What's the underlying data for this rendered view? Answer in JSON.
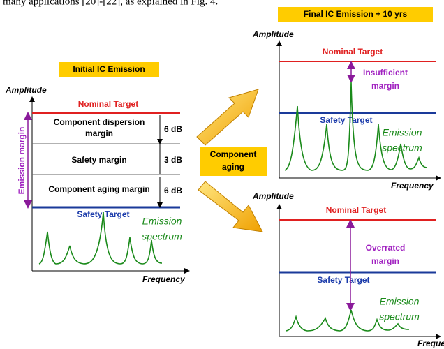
{
  "caption_fragment": "many applications [20]-[22], as explained in Fig. 4.",
  "initial": {
    "title": "Initial IC Emission",
    "y_axis": "Amplitude",
    "x_axis": "Frequency",
    "nominal": "Nominal Target",
    "safety": "Safety Target",
    "emission_margin": "Emission margin",
    "bands": [
      {
        "label": [
          "Component dispersion",
          "margin"
        ],
        "db": "6 dB"
      },
      {
        "label": [
          "Safety margin"
        ],
        "db": "3 dB"
      },
      {
        "label": [
          "Component aging margin"
        ],
        "db": "6 dB"
      }
    ],
    "spectrum": [
      "Emission",
      "spectrum"
    ]
  },
  "aging": [
    "Component",
    "aging"
  ],
  "final": {
    "title": "Final IC Emission + 10 yrs",
    "top": {
      "y_axis": "Amplitude",
      "x_axis": "Frequency",
      "nominal": "Nominal Target",
      "safety": "Safety Target",
      "note": [
        "Insufficient",
        "margin"
      ],
      "spectrum": [
        "Emission",
        "spectrum"
      ]
    },
    "bottom": {
      "y_axis": "Amplitude",
      "x_axis": "Frequency",
      "nominal": "Nominal Target",
      "safety": "Safety Target",
      "note": [
        "Overrated",
        "margin"
      ],
      "spectrum": [
        "Emission",
        "spectrum"
      ]
    }
  }
}
